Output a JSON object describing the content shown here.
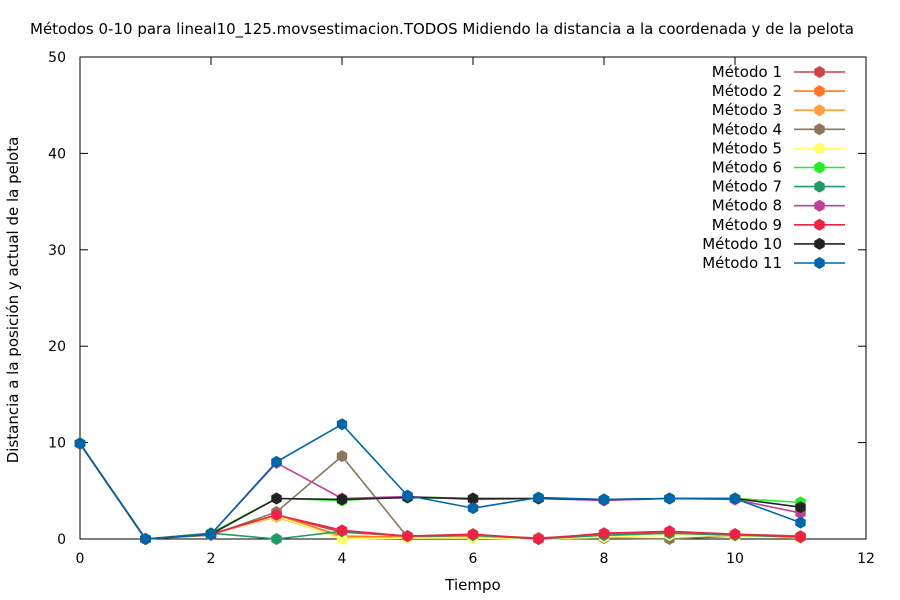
{
  "chart_data": {
    "type": "line",
    "title": "Métodos 0-10 para lineal10_125.movsestimacion.TODOS Midiendo la distancia a la coordenada y de la pelota",
    "xlabel": "Tiempo",
    "ylabel": "Distancia a la posición y actual de la pelota",
    "xlim": [
      0,
      12
    ],
    "ylim": [
      0,
      50
    ],
    "xticks": [
      "0",
      "2",
      "4",
      "6",
      "8",
      "10",
      "12"
    ],
    "yticks": [
      "0",
      "10",
      "20",
      "30",
      "40",
      "50"
    ],
    "xtick_values": [
      0,
      2,
      4,
      6,
      8,
      10,
      12
    ],
    "ytick_values": [
      0,
      10,
      20,
      30,
      40,
      50
    ],
    "grid": false,
    "legend_position": "top-right",
    "x": [
      0,
      1,
      2,
      3,
      4,
      5,
      6,
      7,
      8,
      9,
      10,
      11
    ],
    "series": [
      {
        "name": "Método 1",
        "color": "#cc4444",
        "values": [
          9.9,
          0,
          0.5,
          2.5,
          0.7,
          0.3,
          0.4,
          0.1,
          0.5,
          0.7,
          0.5,
          0.3
        ]
      },
      {
        "name": "Método 2",
        "color": "#ff7722",
        "values": [
          9.9,
          0,
          0.5,
          2.5,
          0.3,
          0.2,
          0.3,
          0,
          0.4,
          0.6,
          0.4,
          0.2
        ]
      },
      {
        "name": "Método 3",
        "color": "#ffa040",
        "values": [
          9.9,
          0,
          0.5,
          2.3,
          0.1,
          0.1,
          0.2,
          0,
          0.3,
          0.6,
          0.4,
          0.2
        ]
      },
      {
        "name": "Método 4",
        "color": "#88775a",
        "values": [
          9.9,
          0,
          0.4,
          2.8,
          8.6,
          0.2,
          0.4,
          0,
          0.1,
          0,
          0.3,
          0.2
        ]
      },
      {
        "name": "Método 5",
        "color": "#ffff66",
        "values": [
          9.9,
          0,
          0.5,
          2.4,
          0,
          0.1,
          0.1,
          0,
          0.2,
          0.4,
          0.3,
          0.1
        ]
      },
      {
        "name": "Método 6",
        "color": "#22ee22",
        "values": [
          9.9,
          0,
          0.6,
          4.2,
          4.0,
          4.4,
          4.2,
          4.2,
          4.1,
          4.2,
          4.2,
          3.8
        ]
      },
      {
        "name": "Método 7",
        "color": "#229966",
        "values": [
          9.9,
          0,
          0.6,
          0,
          0.8,
          0.3,
          0.4,
          0,
          0.4,
          0.6,
          0.4,
          0.2
        ]
      },
      {
        "name": "Método 8",
        "color": "#bb4499",
        "values": [
          9.9,
          0,
          0.5,
          7.9,
          4.2,
          4.4,
          4.1,
          4.2,
          4.0,
          4.2,
          4.1,
          2.7
        ]
      },
      {
        "name": "Método 9",
        "color": "#ee2244",
        "values": [
          9.9,
          0,
          0.5,
          2.5,
          0.9,
          0.3,
          0.5,
          0,
          0.6,
          0.8,
          0.5,
          0.2
        ]
      },
      {
        "name": "Método 10",
        "color": "#222222",
        "values": [
          9.9,
          0,
          0.5,
          4.2,
          4.1,
          4.3,
          4.2,
          4.2,
          4.1,
          4.2,
          4.2,
          3.3
        ]
      },
      {
        "name": "Método 11",
        "color": "#0066aa",
        "values": [
          9.9,
          0,
          0.5,
          8.0,
          11.9,
          4.5,
          3.2,
          4.3,
          4.1,
          4.2,
          4.2,
          1.7
        ]
      }
    ]
  }
}
